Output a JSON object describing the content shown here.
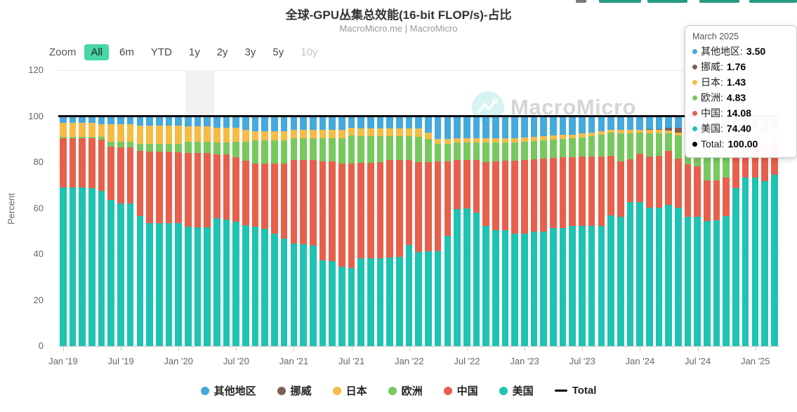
{
  "header": {
    "title": "全球-GPU丛集总效能(16-bit FLOP/s)-占比",
    "subtitle": "MacroMicro.me | MacroMicro"
  },
  "watermark": {
    "text": "MacroMicro"
  },
  "toolbar": {
    "label": "Zoom",
    "buttons": [
      {
        "label": "All",
        "active": true,
        "enabled": true
      },
      {
        "label": "6m",
        "active": false,
        "enabled": true
      },
      {
        "label": "YTD",
        "active": false,
        "enabled": true
      },
      {
        "label": "1y",
        "active": false,
        "enabled": true
      },
      {
        "label": "2y",
        "active": false,
        "enabled": true
      },
      {
        "label": "3y",
        "active": false,
        "enabled": true
      },
      {
        "label": "5y",
        "active": false,
        "enabled": true
      },
      {
        "label": "10y",
        "active": false,
        "enabled": false
      }
    ]
  },
  "y_axis": {
    "title": "Percent",
    "ticks": [
      0,
      20,
      40,
      60,
      80,
      100,
      120
    ],
    "max": 120
  },
  "x_axis": {
    "tick_labels": [
      "Jan '19",
      "Jul '19",
      "Jan '20",
      "Jul '20",
      "Jan '21",
      "Jul '21",
      "Jan '22",
      "Jul '22",
      "Jan '23",
      "Jul '23",
      "Jan '24",
      "Jul '24",
      "Jan '25"
    ],
    "tick_indices": [
      0,
      6,
      12,
      18,
      24,
      30,
      36,
      42,
      48,
      54,
      60,
      66,
      72
    ]
  },
  "legend": [
    {
      "label": "其他地区",
      "color": "#45a9dc",
      "marker": "circle"
    },
    {
      "label": "挪威",
      "color": "#7d6156",
      "marker": "circle"
    },
    {
      "label": "日本",
      "color": "#f5bc45",
      "marker": "circle"
    },
    {
      "label": "欧洲",
      "color": "#77c95f",
      "marker": "circle"
    },
    {
      "label": "中国",
      "color": "#e7604c",
      "marker": "circle"
    },
    {
      "label": "美国",
      "color": "#1ec3b1",
      "marker": "circle"
    },
    {
      "label": "Total",
      "color": "#000000",
      "marker": "dash"
    }
  ],
  "tooltip": {
    "title": "March 2025",
    "rows": [
      {
        "label": "其他地区",
        "value": "3.50",
        "color": "#45a9dc"
      },
      {
        "label": "挪威",
        "value": "1.76",
        "color": "#7d6156"
      },
      {
        "label": "日本",
        "value": "1.43",
        "color": "#f5bc45"
      },
      {
        "label": "欧洲",
        "value": "4.83",
        "color": "#77c95f"
      },
      {
        "label": "中国",
        "value": "14.08",
        "color": "#e7604c"
      },
      {
        "label": "美国",
        "value": "74.40",
        "color": "#1ec3b1"
      },
      {
        "label": "Total",
        "value": "100.00",
        "color": "#000000"
      }
    ]
  },
  "chart_data": {
    "type": "bar",
    "stacked": true,
    "unit": "percent",
    "title": "全球-GPU丛集总效能(16-bit FLOP/s)-占比",
    "ylabel": "Percent",
    "ylim": [
      0,
      120
    ],
    "grid": true,
    "legend_position": "bottom",
    "plot_band": {
      "from_month": "2020-02",
      "to_month": "2020-05"
    },
    "total_line": {
      "name": "Total",
      "value": 100,
      "color": "#000000"
    },
    "x": [
      "2019-01",
      "2019-02",
      "2019-03",
      "2019-04",
      "2019-05",
      "2019-06",
      "2019-07",
      "2019-08",
      "2019-09",
      "2019-10",
      "2019-11",
      "2019-12",
      "2020-01",
      "2020-02",
      "2020-03",
      "2020-04",
      "2020-05",
      "2020-06",
      "2020-07",
      "2020-08",
      "2020-09",
      "2020-10",
      "2020-11",
      "2020-12",
      "2021-01",
      "2021-02",
      "2021-03",
      "2021-04",
      "2021-05",
      "2021-06",
      "2021-07",
      "2021-08",
      "2021-09",
      "2021-10",
      "2021-11",
      "2021-12",
      "2022-01",
      "2022-02",
      "2022-03",
      "2022-04",
      "2022-05",
      "2022-06",
      "2022-07",
      "2022-08",
      "2022-09",
      "2022-10",
      "2022-11",
      "2022-12",
      "2023-01",
      "2023-02",
      "2023-03",
      "2023-04",
      "2023-05",
      "2023-06",
      "2023-07",
      "2023-08",
      "2023-09",
      "2023-10",
      "2023-11",
      "2023-12",
      "2024-01",
      "2024-02",
      "2024-03",
      "2024-04",
      "2024-05",
      "2024-06",
      "2024-07",
      "2024-08",
      "2024-09",
      "2024-10",
      "2024-11",
      "2024-12",
      "2025-01",
      "2025-02",
      "2025-03"
    ],
    "series": [
      {
        "name": "美国",
        "color": "#1ec3b1",
        "values": [
          69,
          69,
          69,
          68.8,
          67.5,
          63.5,
          62,
          62,
          56.5,
          53.5,
          53.5,
          53.5,
          53.5,
          52,
          51.5,
          51.5,
          55.5,
          55,
          54,
          52.5,
          51.8,
          51,
          48.8,
          46.6,
          44.5,
          44.2,
          43.6,
          37.4,
          36.8,
          34.4,
          34,
          38.3,
          38.3,
          38.3,
          38.5,
          38.8,
          44,
          41,
          41.1,
          41.1,
          47.9,
          59.5,
          59.8,
          58,
          52.1,
          50.3,
          50.3,
          48.8,
          48.8,
          49.7,
          49.7,
          51.2,
          51.2,
          52.1,
          52.1,
          52.3,
          52.3,
          56.7,
          56.1,
          62.6,
          62.6,
          60.1,
          60.1,
          61.3,
          60.1,
          56.1,
          56.1,
          54.3,
          54.7,
          56.4,
          68.7,
          73.3,
          73.3,
          71.8,
          74.4
        ]
      },
      {
        "name": "中国",
        "color": "#e7604c",
        "values": [
          21.5,
          21.5,
          21.3,
          21.5,
          22.3,
          23.3,
          24.3,
          24.3,
          28.5,
          31,
          31,
          31,
          30.8,
          32,
          32.5,
          32.5,
          28,
          28.5,
          28,
          28,
          27.6,
          28.5,
          30.5,
          32.9,
          36.5,
          36.8,
          37.4,
          43,
          43.6,
          45,
          45.4,
          41.5,
          41.5,
          41.7,
          42.5,
          42.2,
          37,
          39,
          39,
          39.3,
          32.5,
          21.5,
          21.2,
          23,
          28,
          30,
          30.2,
          31.7,
          32,
          31.5,
          31.8,
          30.5,
          30.8,
          30,
          30.2,
          30,
          30,
          26,
          24.3,
          18.5,
          21.1,
          22.5,
          22.8,
          23.7,
          21.5,
          23,
          22.2,
          17.8,
          17.5,
          16.9,
          16.9,
          14.7,
          14.5,
          15.5,
          14.08
        ]
      },
      {
        "name": "欧洲",
        "color": "#77c95f",
        "values": [
          0.5,
          0.5,
          0.7,
          0.7,
          1.2,
          2.2,
          2.7,
          2.7,
          3,
          3.5,
          3.5,
          3.5,
          3.7,
          5,
          5,
          5,
          5,
          5,
          7,
          8.5,
          10.2,
          10,
          10.2,
          10,
          9.5,
          9.5,
          9.5,
          10.1,
          10.1,
          11.1,
          12.3,
          11.5,
          11.5,
          11.3,
          10.3,
          10.3,
          10.3,
          11,
          10,
          7.7,
          7.7,
          7.5,
          7.5,
          7.5,
          8.4,
          8.2,
          8,
          8,
          8.2,
          8,
          8,
          8,
          8,
          8.3,
          8.5,
          9,
          9.5,
          10,
          12.2,
          11.5,
          9,
          10,
          9.7,
          7.6,
          10,
          12.5,
          13.3,
          19.5,
          19.4,
          18.3,
          6,
          4.5,
          4.8,
          5,
          4.83
        ]
      },
      {
        "name": "日本",
        "color": "#f5bc45",
        "values": [
          6,
          6,
          6,
          6,
          5.5,
          7.5,
          7.5,
          7.5,
          8,
          8,
          8,
          8,
          8,
          6.5,
          6.5,
          6.5,
          6.5,
          6.5,
          6,
          5,
          4,
          4,
          4,
          4,
          3.5,
          3.5,
          3.5,
          3.5,
          3.5,
          3.5,
          3.4,
          3.4,
          3.4,
          3.4,
          3.4,
          3.4,
          3.4,
          3.7,
          2.8,
          2.1,
          2.1,
          2,
          2,
          2,
          2,
          2,
          2,
          2,
          1.8,
          1.8,
          1.8,
          1.8,
          1.8,
          1.6,
          1.6,
          1.5,
          1.5,
          1.4,
          1.4,
          1.4,
          1.3,
          1.4,
          1.4,
          1.2,
          1.2,
          1.2,
          1.2,
          1.2,
          1.2,
          1.2,
          1.2,
          1.3,
          1.4,
          1.4,
          1.43
        ]
      },
      {
        "name": "挪威",
        "color": "#7d6156",
        "values": [
          0,
          0,
          0,
          0,
          0,
          0,
          0,
          0,
          0,
          0,
          0,
          0,
          0,
          0,
          0,
          0,
          0,
          0,
          0,
          0,
          0,
          0,
          0,
          0,
          0,
          0,
          0,
          0,
          0,
          0,
          0,
          0,
          0,
          0,
          0,
          0,
          0,
          0,
          0,
          0,
          0,
          0,
          0,
          0,
          0,
          0,
          0,
          0,
          0,
          0,
          0,
          0,
          0,
          0,
          0,
          0,
          0,
          0,
          0,
          0,
          0,
          0.5,
          0.5,
          1.2,
          2.2,
          2.2,
          2.2,
          2.2,
          2.2,
          2.2,
          2.2,
          2,
          1.9,
          1.8,
          1.76
        ]
      },
      {
        "name": "其他地区",
        "color": "#45a9dc",
        "values": [
          3,
          3,
          3,
          3,
          3.5,
          3.5,
          3.5,
          3.5,
          4,
          4,
          4,
          4,
          4,
          4.5,
          4.5,
          4.5,
          5,
          5,
          5,
          6,
          6.4,
          6.5,
          6.5,
          6.5,
          6,
          6,
          6,
          6,
          6,
          6,
          4.9,
          5.3,
          5.3,
          5.3,
          5.3,
          5.3,
          5.3,
          5.3,
          7.1,
          9.8,
          9.8,
          9.5,
          9.5,
          9.5,
          9.5,
          9.5,
          9.5,
          9.5,
          9.2,
          9,
          8.7,
          8.5,
          8.2,
          8,
          7.6,
          7.2,
          6.7,
          5.9,
          6,
          6,
          6,
          5.5,
          5.5,
          5,
          5,
          5,
          5,
          5,
          5,
          5,
          5,
          4.2,
          4.1,
          4.5,
          3.5
        ]
      }
    ]
  }
}
